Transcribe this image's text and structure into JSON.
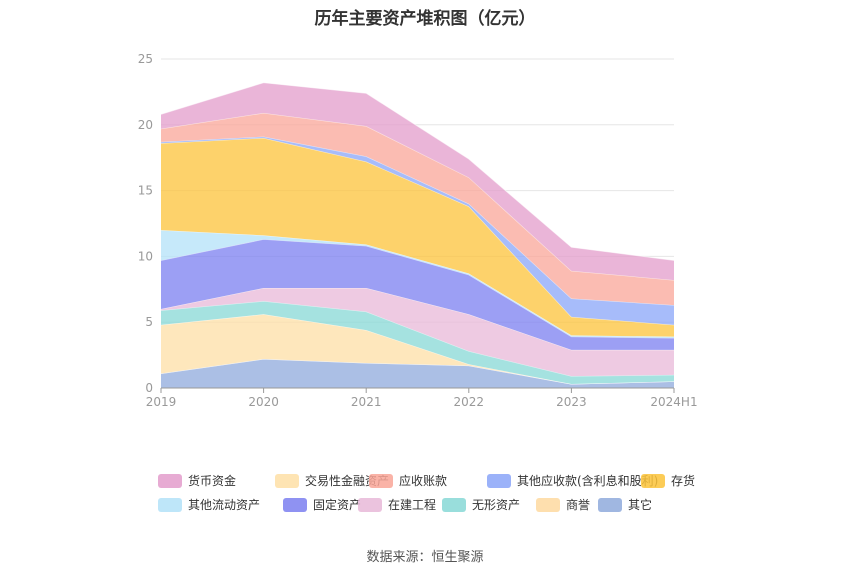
{
  "chart_data": {
    "type": "area",
    "stacked": true,
    "title": "历年主要资产堆积图（亿元）",
    "categories": [
      "2019",
      "2020",
      "2021",
      "2022",
      "2023",
      "2024H1"
    ],
    "ylim": [
      0,
      25
    ],
    "yticks": [
      0,
      5,
      10,
      15,
      20,
      25
    ],
    "grid": true,
    "legend_position": "bottom",
    "series": [
      {
        "name": "其它",
        "color": "#8faadc",
        "values": [
          1.1,
          2.2,
          1.9,
          1.7,
          0.3,
          0.5
        ]
      },
      {
        "name": "商誉",
        "color": "#fed9a0",
        "values": [
          0,
          0,
          0,
          0,
          0,
          0
        ]
      },
      {
        "name": "交易性金融资产",
        "color": "#fedfa6",
        "values": [
          3.7,
          3.4,
          2.5,
          0.1,
          0,
          0
        ]
      },
      {
        "name": "无形资产",
        "color": "#87d8d6",
        "values": [
          1.1,
          1.0,
          1.4,
          1.0,
          0.6,
          0.5
        ]
      },
      {
        "name": "在建工程",
        "color": "#e8b8d8",
        "values": [
          0.1,
          1.0,
          1.8,
          2.8,
          2.0,
          1.9
        ]
      },
      {
        "name": "固定资产",
        "color": "#7b7ff0",
        "values": [
          3.7,
          3.7,
          3.2,
          3.0,
          1.0,
          0.9
        ]
      },
      {
        "name": "其他流动资产",
        "color": "#b3e2f8",
        "values": [
          2.3,
          0.3,
          0.1,
          0.1,
          0.1,
          0.1
        ]
      },
      {
        "name": "存货",
        "color": "#fcc33a",
        "values": [
          6.6,
          7.4,
          6.3,
          5.1,
          1.4,
          0.9
        ]
      },
      {
        "name": "其他应收款(含利息和股利)",
        "color": "#8aa5f8",
        "values": [
          0.1,
          0.1,
          0.4,
          0.2,
          1.4,
          1.5
        ]
      },
      {
        "name": "应收账款",
        "color": "#f9a698",
        "values": [
          1.0,
          1.8,
          2.3,
          2.0,
          2.1,
          1.9
        ]
      },
      {
        "name": "货币资金",
        "color": "#e39ccb",
        "values": [
          1.1,
          2.3,
          2.5,
          1.4,
          1.8,
          1.5
        ]
      }
    ],
    "legend_order": [
      "货币资金",
      "交易性金融资产",
      "应收账款",
      "其他应收款(含利息和股利)",
      "存货",
      "其他流动资产",
      "固定资产",
      "在建工程",
      "无形资产",
      "商誉",
      "其它"
    ]
  },
  "source": "数据来源：恒生聚源"
}
